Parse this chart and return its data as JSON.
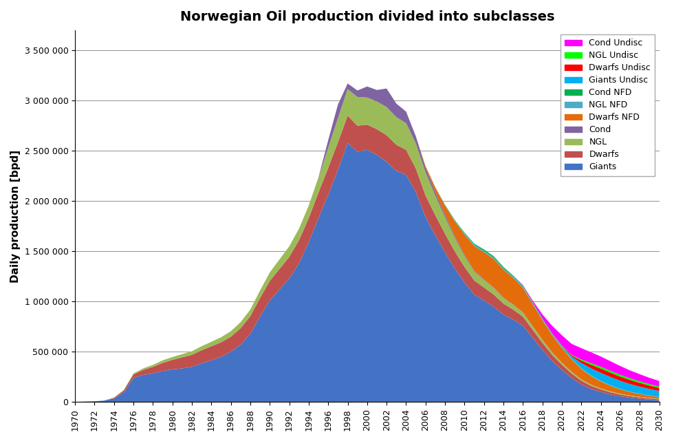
{
  "title": "Norwegian Oil production divided into subclasses",
  "ylabel": "Daily production [bpd]",
  "xlim": [
    1970,
    2030
  ],
  "ylim": [
    0,
    3700000
  ],
  "yticks": [
    0,
    500000,
    1000000,
    1500000,
    2000000,
    2500000,
    3000000,
    3500000
  ],
  "ytick_labels": [
    "0",
    "500 000",
    "1 000 000",
    "1 500 000",
    "2 000 000",
    "2 500 000",
    "3 000 000",
    "3 500 000"
  ],
  "xticks": [
    1970,
    1972,
    1974,
    1976,
    1978,
    1980,
    1982,
    1984,
    1986,
    1988,
    1990,
    1992,
    1994,
    1996,
    1998,
    2000,
    2002,
    2004,
    2006,
    2008,
    2010,
    2012,
    2014,
    2016,
    2018,
    2020,
    2022,
    2024,
    2026,
    2028,
    2030
  ],
  "series": [
    {
      "name": "Giants",
      "color": "#4472C4",
      "values": {
        "1970": 2000,
        "1971": 5000,
        "1972": 8000,
        "1973": 15000,
        "1974": 35000,
        "1975": 95000,
        "1976": 240000,
        "1977": 270000,
        "1978": 285000,
        "1979": 310000,
        "1980": 325000,
        "1981": 335000,
        "1982": 350000,
        "1983": 385000,
        "1984": 415000,
        "1985": 450000,
        "1986": 500000,
        "1987": 570000,
        "1988": 680000,
        "1989": 850000,
        "1990": 1010000,
        "1991": 1120000,
        "1992": 1230000,
        "1993": 1380000,
        "1994": 1590000,
        "1995": 1830000,
        "1996": 2060000,
        "1997": 2310000,
        "1998": 2580000,
        "1999": 2490000,
        "2000": 2510000,
        "2001": 2460000,
        "2002": 2390000,
        "2003": 2300000,
        "2004": 2260000,
        "2005": 2090000,
        "2006": 1840000,
        "2007": 1660000,
        "2008": 1490000,
        "2009": 1330000,
        "2010": 1190000,
        "2011": 1070000,
        "2012": 1010000,
        "2013": 950000,
        "2014": 870000,
        "2015": 820000,
        "2016": 760000,
        "2017": 640000,
        "2018": 520000,
        "2019": 410000,
        "2020": 320000,
        "2021": 240000,
        "2022": 175000,
        "2023": 130000,
        "2024": 100000,
        "2025": 75000,
        "2026": 57000,
        "2027": 43000,
        "2028": 33000,
        "2029": 25000,
        "2030": 19000
      }
    },
    {
      "name": "Dwarfs",
      "color": "#C0504D",
      "values": {
        "1970": 0,
        "1971": 0,
        "1972": 0,
        "1973": 0,
        "1974": 8000,
        "1975": 20000,
        "1976": 35000,
        "1977": 50000,
        "1978": 65000,
        "1979": 80000,
        "1980": 95000,
        "1981": 110000,
        "1982": 120000,
        "1983": 130000,
        "1984": 140000,
        "1985": 145000,
        "1986": 150000,
        "1987": 165000,
        "1988": 175000,
        "1989": 185000,
        "1990": 195000,
        "1991": 205000,
        "1992": 215000,
        "1993": 230000,
        "1994": 240000,
        "1995": 255000,
        "1996": 270000,
        "1997": 275000,
        "1998": 270000,
        "1999": 260000,
        "2000": 250000,
        "2001": 255000,
        "2002": 265000,
        "2003": 260000,
        "2004": 250000,
        "2005": 235000,
        "2006": 215000,
        "2007": 200000,
        "2008": 185000,
        "2009": 170000,
        "2010": 155000,
        "2011": 140000,
        "2012": 130000,
        "2013": 120000,
        "2014": 110000,
        "2015": 100000,
        "2016": 90000,
        "2017": 80000,
        "2018": 70000,
        "2019": 60000,
        "2020": 52000,
        "2021": 44000,
        "2022": 37000,
        "2023": 31000,
        "2024": 26000,
        "2025": 22000,
        "2026": 18000,
        "2027": 15000,
        "2028": 13000,
        "2029": 11000,
        "2030": 9000
      }
    },
    {
      "name": "NGL",
      "color": "#9BBB59",
      "values": {
        "1970": 0,
        "1971": 0,
        "1972": 0,
        "1973": 0,
        "1974": 2000,
        "1975": 5000,
        "1976": 10000,
        "1977": 15000,
        "1978": 20000,
        "1979": 25000,
        "1980": 28000,
        "1981": 32000,
        "1982": 36000,
        "1983": 40000,
        "1984": 45000,
        "1985": 50000,
        "1986": 55000,
        "1987": 60000,
        "1988": 65000,
        "1989": 75000,
        "1990": 85000,
        "1991": 95000,
        "1992": 105000,
        "1993": 115000,
        "1994": 125000,
        "1995": 145000,
        "1996": 200000,
        "1997": 240000,
        "1998": 265000,
        "1999": 285000,
        "2000": 270000,
        "2001": 275000,
        "2002": 280000,
        "2003": 275000,
        "2004": 265000,
        "2005": 250000,
        "2006": 230000,
        "2007": 195000,
        "2008": 165000,
        "2009": 135000,
        "2010": 108000,
        "2011": 88000,
        "2012": 75000,
        "2013": 64000,
        "2014": 55000,
        "2015": 47000,
        "2016": 40000,
        "2017": 34000,
        "2018": 29000,
        "2019": 24000,
        "2020": 20000,
        "2021": 17000,
        "2022": 14000,
        "2023": 12000,
        "2024": 10000,
        "2025": 9000,
        "2026": 7500,
        "2027": 6500,
        "2028": 5500,
        "2029": 4700,
        "2030": 4000
      }
    },
    {
      "name": "Cond",
      "color": "#8064A2",
      "values": {
        "1970": 0,
        "1971": 0,
        "1972": 0,
        "1973": 0,
        "1974": 0,
        "1975": 0,
        "1976": 0,
        "1977": 0,
        "1978": 0,
        "1979": 0,
        "1980": 0,
        "1981": 0,
        "1982": 0,
        "1983": 0,
        "1984": 0,
        "1985": 0,
        "1986": 0,
        "1987": 0,
        "1988": 0,
        "1989": 0,
        "1990": 0,
        "1991": 0,
        "1992": 0,
        "1993": 0,
        "1994": 0,
        "1995": 5000,
        "1996": 75000,
        "1997": 135000,
        "1998": 55000,
        "1999": 65000,
        "2000": 110000,
        "2001": 115000,
        "2002": 185000,
        "2003": 135000,
        "2004": 115000,
        "2005": 70000,
        "2006": 48000,
        "2007": 35000,
        "2008": 25000,
        "2009": 18000,
        "2010": 13000,
        "2011": 9000,
        "2012": 7000,
        "2013": 5500,
        "2014": 4500,
        "2015": 3500,
        "2016": 3000,
        "2017": 2500,
        "2018": 2000,
        "2019": 1600,
        "2020": 1300,
        "2021": 1000,
        "2022": 800,
        "2023": 650,
        "2024": 520,
        "2025": 420,
        "2026": 340,
        "2027": 275,
        "2028": 220,
        "2029": 180,
        "2030": 145
      }
    },
    {
      "name": "Dwarfs NFD",
      "color": "#E46C0A",
      "values": {
        "1970": 0,
        "1971": 0,
        "1972": 0,
        "1973": 0,
        "1974": 0,
        "1975": 0,
        "1976": 0,
        "1977": 0,
        "1978": 0,
        "1979": 0,
        "1980": 0,
        "1981": 0,
        "1982": 0,
        "1983": 0,
        "1984": 0,
        "1985": 0,
        "1986": 0,
        "1987": 0,
        "1988": 0,
        "1989": 0,
        "1990": 0,
        "1991": 0,
        "1992": 0,
        "1993": 0,
        "1994": 0,
        "1995": 0,
        "1996": 0,
        "1997": 0,
        "1998": 0,
        "1999": 0,
        "2000": 0,
        "2001": 0,
        "2002": 0,
        "2003": 0,
        "2004": 0,
        "2005": 0,
        "2006": 15000,
        "2007": 45000,
        "2008": 90000,
        "2009": 145000,
        "2010": 200000,
        "2011": 245000,
        "2012": 270000,
        "2013": 285000,
        "2014": 280000,
        "2015": 265000,
        "2016": 245000,
        "2017": 220000,
        "2018": 195000,
        "2019": 170000,
        "2020": 145000,
        "2021": 122000,
        "2022": 102000,
        "2023": 84000,
        "2024": 68000,
        "2025": 55000,
        "2026": 44000,
        "2027": 35000,
        "2028": 28000,
        "2029": 22000,
        "2030": 17000
      }
    },
    {
      "name": "NGL NFD",
      "color": "#4BACC6",
      "values": {
        "1970": 0,
        "1971": 0,
        "1972": 0,
        "1973": 0,
        "1974": 0,
        "1975": 0,
        "1976": 0,
        "1977": 0,
        "1978": 0,
        "1979": 0,
        "1980": 0,
        "1981": 0,
        "1982": 0,
        "1983": 0,
        "1984": 0,
        "1985": 0,
        "1986": 0,
        "1987": 0,
        "1988": 0,
        "1989": 0,
        "1990": 0,
        "1991": 0,
        "1992": 0,
        "1993": 0,
        "1994": 0,
        "1995": 0,
        "1996": 0,
        "1997": 0,
        "1998": 0,
        "1999": 0,
        "2000": 0,
        "2001": 0,
        "2002": 0,
        "2003": 0,
        "2004": 0,
        "2005": 0,
        "2006": 0,
        "2007": 2000,
        "2008": 5000,
        "2009": 8000,
        "2010": 11000,
        "2011": 13000,
        "2012": 14000,
        "2013": 14000,
        "2014": 13000,
        "2015": 12000,
        "2016": 11000,
        "2017": 10000,
        "2018": 9000,
        "2019": 8000,
        "2020": 7000,
        "2021": 6000,
        "2022": 5000,
        "2023": 4200,
        "2024": 3500,
        "2025": 2900,
        "2026": 2400,
        "2027": 2000,
        "2028": 1600,
        "2029": 1300,
        "2030": 1100
      }
    },
    {
      "name": "Cond NFD",
      "color": "#00B050",
      "values": {
        "1970": 0,
        "1971": 0,
        "1972": 0,
        "1973": 0,
        "1974": 0,
        "1975": 0,
        "1976": 0,
        "1977": 0,
        "1978": 0,
        "1979": 0,
        "1980": 0,
        "1981": 0,
        "1982": 0,
        "1983": 0,
        "1984": 0,
        "1985": 0,
        "1986": 0,
        "1987": 0,
        "1988": 0,
        "1989": 0,
        "1990": 0,
        "1991": 0,
        "1992": 0,
        "1993": 0,
        "1994": 0,
        "1995": 0,
        "1996": 0,
        "1997": 0,
        "1998": 0,
        "1999": 0,
        "2000": 0,
        "2001": 0,
        "2002": 0,
        "2003": 0,
        "2004": 0,
        "2005": 0,
        "2006": 0,
        "2007": 1500,
        "2008": 4000,
        "2009": 6500,
        "2010": 9000,
        "2011": 11000,
        "2012": 12500,
        "2013": 13000,
        "2014": 12000,
        "2015": 11000,
        "2016": 10000,
        "2017": 9000,
        "2018": 8000,
        "2019": 7000,
        "2020": 6000,
        "2021": 5100,
        "2022": 4300,
        "2023": 3600,
        "2024": 3000,
        "2025": 2500,
        "2026": 2000,
        "2027": 1700,
        "2028": 1400,
        "2029": 1100,
        "2030": 900
      }
    },
    {
      "name": "Giants Undisc",
      "color": "#00B0F0",
      "values": {
        "1970": 0,
        "1971": 0,
        "1972": 0,
        "1973": 0,
        "1974": 0,
        "1975": 0,
        "1976": 0,
        "1977": 0,
        "1978": 0,
        "1979": 0,
        "1980": 0,
        "1981": 0,
        "1982": 0,
        "1983": 0,
        "1984": 0,
        "1985": 0,
        "1986": 0,
        "1987": 0,
        "1988": 0,
        "1989": 0,
        "1990": 0,
        "1991": 0,
        "1992": 0,
        "1993": 0,
        "1994": 0,
        "1995": 0,
        "1996": 0,
        "1997": 0,
        "1998": 0,
        "1999": 0,
        "2000": 0,
        "2001": 0,
        "2002": 0,
        "2003": 0,
        "2004": 0,
        "2005": 0,
        "2006": 0,
        "2007": 0,
        "2008": 0,
        "2009": 0,
        "2010": 0,
        "2011": 0,
        "2012": 0,
        "2013": 0,
        "2014": 0,
        "2015": 0,
        "2016": 0,
        "2017": 0,
        "2018": 0,
        "2019": 2000,
        "2020": 8000,
        "2021": 20000,
        "2022": 50000,
        "2023": 70000,
        "2024": 80000,
        "2025": 82000,
        "2026": 80000,
        "2027": 76000,
        "2028": 71000,
        "2029": 65000,
        "2030": 59000
      }
    },
    {
      "name": "Dwarfs Undisc",
      "color": "#FF0000",
      "values": {
        "1970": 0,
        "1971": 0,
        "1972": 0,
        "1973": 0,
        "1974": 0,
        "1975": 0,
        "1976": 0,
        "1977": 0,
        "1978": 0,
        "1979": 0,
        "1980": 0,
        "1981": 0,
        "1982": 0,
        "1983": 0,
        "1984": 0,
        "1985": 0,
        "1986": 0,
        "1987": 0,
        "1988": 0,
        "1989": 0,
        "1990": 0,
        "1991": 0,
        "1992": 0,
        "1993": 0,
        "1994": 0,
        "1995": 0,
        "1996": 0,
        "1997": 0,
        "1998": 0,
        "1999": 0,
        "2000": 0,
        "2001": 0,
        "2002": 0,
        "2003": 0,
        "2004": 0,
        "2005": 0,
        "2006": 0,
        "2007": 0,
        "2008": 0,
        "2009": 0,
        "2010": 0,
        "2011": 0,
        "2012": 0,
        "2013": 0,
        "2014": 0,
        "2015": 0,
        "2016": 0,
        "2017": 0,
        "2018": 0,
        "2019": 1000,
        "2020": 4000,
        "2021": 10000,
        "2022": 25000,
        "2023": 36000,
        "2024": 42000,
        "2025": 43000,
        "2026": 42000,
        "2027": 40000,
        "2028": 37000,
        "2029": 34000,
        "2030": 31000
      }
    },
    {
      "name": "NGL Undisc",
      "color": "#00FF00",
      "values": {
        "1970": 0,
        "1971": 0,
        "1972": 0,
        "1973": 0,
        "1974": 0,
        "1975": 0,
        "1976": 0,
        "1977": 0,
        "1978": 0,
        "1979": 0,
        "1980": 0,
        "1981": 0,
        "1982": 0,
        "1983": 0,
        "1984": 0,
        "1985": 0,
        "1986": 0,
        "1987": 0,
        "1988": 0,
        "1989": 0,
        "1990": 0,
        "1991": 0,
        "1992": 0,
        "1993": 0,
        "1994": 0,
        "1995": 0,
        "1996": 0,
        "1997": 0,
        "1998": 0,
        "1999": 0,
        "2000": 0,
        "2001": 0,
        "2002": 0,
        "2003": 0,
        "2004": 0,
        "2005": 0,
        "2006": 0,
        "2007": 0,
        "2008": 0,
        "2009": 0,
        "2010": 0,
        "2011": 0,
        "2012": 0,
        "2013": 0,
        "2014": 0,
        "2015": 0,
        "2016": 0,
        "2017": 0,
        "2018": 0,
        "2019": 500,
        "2020": 1800,
        "2021": 4500,
        "2022": 11000,
        "2023": 16000,
        "2024": 18500,
        "2025": 19000,
        "2026": 18500,
        "2027": 17500,
        "2028": 16500,
        "2029": 15000,
        "2030": 13500
      }
    },
    {
      "name": "Cond Undisc",
      "color": "#FF00FF",
      "values": {
        "1970": 0,
        "1971": 0,
        "1972": 0,
        "1973": 0,
        "1974": 0,
        "1975": 0,
        "1976": 0,
        "1977": 0,
        "1978": 0,
        "1979": 0,
        "1980": 0,
        "1981": 0,
        "1982": 0,
        "1983": 0,
        "1984": 0,
        "1985": 0,
        "1986": 0,
        "1987": 0,
        "1988": 0,
        "1989": 0,
        "1990": 0,
        "1991": 0,
        "1992": 0,
        "1993": 0,
        "1994": 0,
        "1995": 0,
        "1996": 0,
        "1997": 0,
        "1998": 0,
        "1999": 0,
        "2000": 0,
        "2001": 0,
        "2002": 0,
        "2003": 0,
        "2004": 0,
        "2005": 0,
        "2006": 0,
        "2007": 0,
        "2008": 0,
        "2009": 0,
        "2010": 0,
        "2011": 0,
        "2012": 0,
        "2013": 0,
        "2014": 0,
        "2015": 0,
        "2016": 5000,
        "2017": 15000,
        "2018": 40000,
        "2019": 75000,
        "2020": 100000,
        "2021": 110000,
        "2022": 112000,
        "2023": 108000,
        "2024": 102000,
        "2025": 95000,
        "2026": 87000,
        "2027": 78000,
        "2028": 70000,
        "2029": 62000,
        "2030": 55000
      }
    }
  ]
}
